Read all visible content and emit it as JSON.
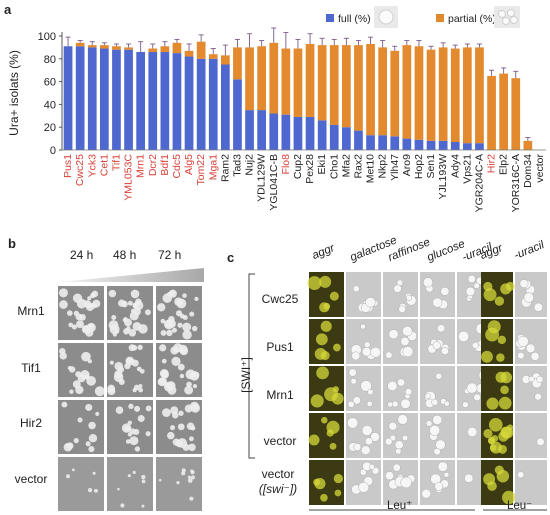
{
  "panels": {
    "a": "a",
    "b": "b",
    "c": "c"
  },
  "chart_data": {
    "type": "bar",
    "stacked": true,
    "ylabel": "Ura+ isolats (%)",
    "ylim": [
      0,
      100
    ],
    "yticks": [
      0,
      20,
      40,
      60,
      80,
      100
    ],
    "legend": {
      "position": "top-right",
      "entries": [
        "full (%)",
        "partial (%)"
      ]
    },
    "colors": {
      "full": "#4f68cf",
      "partial": "#e38a2e",
      "red_label": "#d9413a",
      "black_label": "#222222"
    },
    "categories": [
      "Pus1",
      "Cwc25",
      "Yck3",
      "Cet1",
      "Tif1",
      "YML053C",
      "Mrn1",
      "Dcr2",
      "Bdf1",
      "Cdc5",
      "Alg5",
      "Tom22",
      "Mga1",
      "Ram2",
      "Tad3",
      "Nuj2",
      "YDL129W",
      "YGL041C-B",
      "Flo8",
      "Cup2",
      "Pex28",
      "Eki1",
      "Cho1",
      "Mfa2",
      "Rax2",
      "Met10",
      "Nkp2",
      "Ylh47",
      "Aro9",
      "Hop2",
      "Sen1",
      "YJL193W",
      "Ady4",
      "Vps21",
      "YGR204C-A",
      "Hir2",
      "Elp2",
      "YOR316C-A",
      "Dom34",
      "vector"
    ],
    "label_color": [
      "red",
      "red",
      "red",
      "red",
      "red",
      "red",
      "red",
      "red",
      "red",
      "red",
      "red",
      "red",
      "red",
      "black",
      "black",
      "black",
      "black",
      "black",
      "red",
      "black",
      "black",
      "black",
      "black",
      "black",
      "black",
      "black",
      "black",
      "black",
      "black",
      "black",
      "black",
      "black",
      "black",
      "black",
      "black",
      "red",
      "black",
      "black",
      "black",
      "black"
    ],
    "series": [
      {
        "name": "full (%)",
        "values": [
          91,
          91,
          90,
          89,
          88,
          88,
          86,
          86,
          86,
          85,
          82,
          80,
          80,
          75,
          62,
          35,
          35,
          32,
          31,
          29,
          29,
          26,
          22,
          20,
          17,
          13,
          13,
          12,
          10,
          9,
          8,
          8,
          7,
          6,
          6,
          0,
          0,
          0,
          0,
          0
        ]
      },
      {
        "name": "partial (%)",
        "values": [
          0,
          3,
          2,
          3,
          3,
          2,
          0,
          3,
          5,
          9,
          5,
          15,
          4,
          8,
          28,
          55,
          56,
          62,
          58,
          60,
          64,
          66,
          70,
          72,
          75,
          80,
          77,
          75,
          82,
          82,
          80,
          82,
          82,
          84,
          84,
          65,
          67,
          63,
          8,
          0
        ]
      }
    ],
    "errors": [
      8,
      2,
      3,
      2,
      2,
      3,
      9,
      4,
      4,
      3,
      6,
      6,
      5,
      9,
      7,
      12,
      5,
      13,
      14,
      8,
      9,
      6,
      5,
      6,
      4,
      6,
      6,
      4,
      4,
      5,
      3,
      4,
      3,
      3,
      3,
      5,
      5,
      6,
      3,
      0
    ]
  },
  "panel_b": {
    "times": [
      "24 h",
      "48 h",
      "72 h"
    ],
    "rows": [
      "Mrn1",
      "Tif1",
      "Hir2",
      "vector"
    ]
  },
  "panel_c": {
    "cols_left": [
      "aggr",
      "galactose",
      "raffinose",
      "glucose",
      "-uracil"
    ],
    "cols_right": [
      "aggr",
      "-uracil"
    ],
    "rows": [
      "Cwc25",
      "Pus1",
      "Mrn1",
      "vector"
    ],
    "row_last_line1": "vector",
    "row_last_line2": "([swi⁻])",
    "bracket_label": "[SWI⁺]",
    "leu_plus": "Leu⁺",
    "leu_minus": "Leu⁻"
  }
}
